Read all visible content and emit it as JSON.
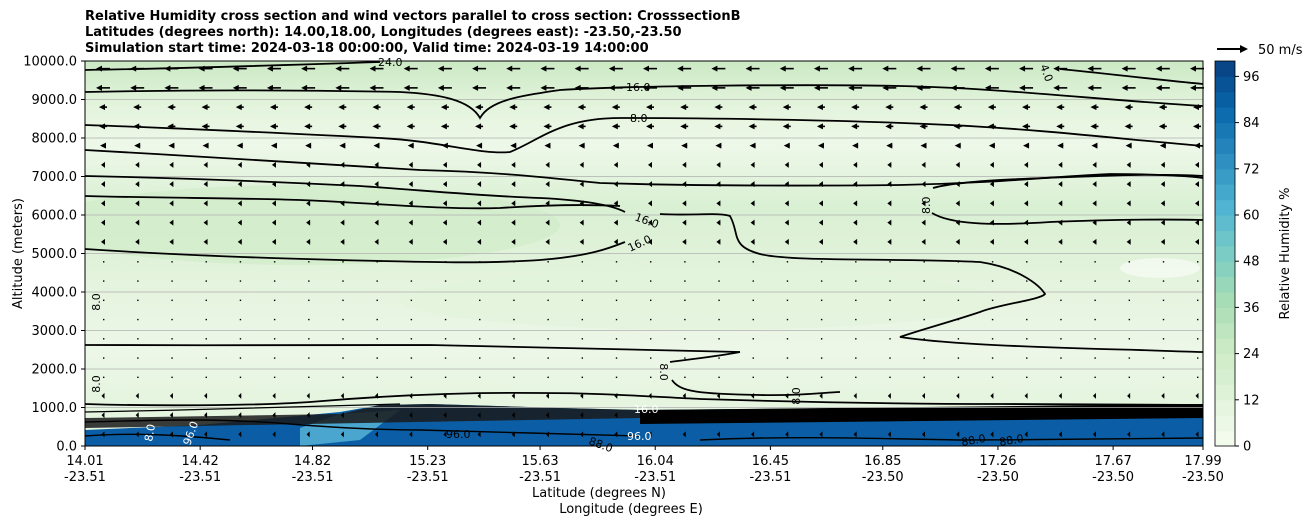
{
  "title_lines": [
    "Relative Humidity cross section and wind vectors parallel to cross section: CrosssectionB",
    "Latitudes (degrees north): 14.00,18.00, Longitudes (degrees east): -23.50,-23.50",
    "Simulation start time: 2024-03-18 00:00:00, Valid time: 2024-03-19 14:00:00"
  ],
  "chart_data": {
    "type": "heatmap",
    "variable": "Relative Humidity",
    "ylabel": "Altitude (meters)",
    "xlabel_lat": "Latitude (degrees N)",
    "xlabel_lon": "Longitude (degrees E)",
    "ylim": [
      0,
      10000
    ],
    "y_ticks": [
      "0.0",
      "1000.0",
      "2000.0",
      "3000.0",
      "4000.0",
      "5000.0",
      "6000.0",
      "7000.0",
      "8000.0",
      "9000.0",
      "10000.0"
    ],
    "x_ticks": [
      {
        "lat": "14.01",
        "lon": "-23.51"
      },
      {
        "lat": "14.42",
        "lon": "-23.51"
      },
      {
        "lat": "14.82",
        "lon": "-23.51"
      },
      {
        "lat": "15.23",
        "lon": "-23.51"
      },
      {
        "lat": "15.63",
        "lon": "-23.51"
      },
      {
        "lat": "16.04",
        "lon": "-23.51"
      },
      {
        "lat": "16.45",
        "lon": "-23.51"
      },
      {
        "lat": "16.85",
        "lon": "-23.50"
      },
      {
        "lat": "17.26",
        "lon": "-23.50"
      },
      {
        "lat": "17.67",
        "lon": "-23.50"
      },
      {
        "lat": "17.99",
        "lon": "-23.50"
      }
    ],
    "xlim": [
      14.01,
      17.99
    ],
    "horizontal_grid": true,
    "colorbar": {
      "label": "Relative Humidity %",
      "ticks": [
        0,
        12,
        24,
        36,
        48,
        60,
        72,
        84,
        96
      ],
      "range": [
        0,
        100
      ],
      "colormap": "GnBu",
      "colors": [
        "#f7fcf0",
        "#e0f3db",
        "#ccebc5",
        "#a8ddb5",
        "#7bccc4",
        "#4eb3d3",
        "#2b8cbe",
        "#0868ac",
        "#084081"
      ]
    },
    "contour_labels": [
      "24.0",
      "16.0",
      "8.0",
      "16.0",
      "8.0",
      "16.0",
      "16.0",
      "8.0",
      "8.0",
      "8.0",
      "8.0",
      "8.0",
      "16.0",
      "96.0",
      "96.0",
      "88.0",
      "88.0",
      "88.0",
      "96.0",
      "8.0",
      "4.0"
    ],
    "wind_reference": {
      "label": "50 m/s"
    },
    "wind_field": "easterly (leftward) vectors, strongest near 9500 m, weak below 5000 m"
  }
}
